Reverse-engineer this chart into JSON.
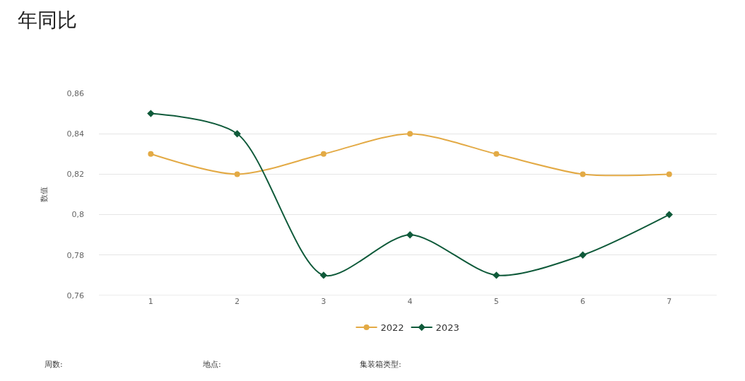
{
  "chart_data": {
    "type": "line",
    "title": "年同比",
    "ylabel": "数值",
    "categories": [
      "1",
      "2",
      "3",
      "4",
      "5",
      "6",
      "7"
    ],
    "series": [
      {
        "name": "2022",
        "color": "#e3aa45",
        "marker": "circle",
        "values": [
          0.83,
          0.82,
          0.83,
          0.84,
          0.83,
          0.82,
          0.82
        ]
      },
      {
        "name": "2023",
        "color": "#0f5a3a",
        "marker": "diamond",
        "values": [
          0.85,
          0.84,
          0.77,
          0.79,
          0.77,
          0.78,
          0.8
        ]
      }
    ],
    "ylim": [
      0.76,
      0.86
    ],
    "yticks": [
      {
        "value": 0.76,
        "label": "0,76"
      },
      {
        "value": 0.78,
        "label": "0,78"
      },
      {
        "value": 0.8,
        "label": "0,8"
      },
      {
        "value": 0.82,
        "label": "0,82"
      },
      {
        "value": 0.84,
        "label": "0,84"
      },
      {
        "value": 0.86,
        "label": "0,86"
      }
    ],
    "grid": "y",
    "legend": "bottom",
    "annotations": [
      "周数:",
      "地点:",
      "集装箱类型:"
    ]
  }
}
